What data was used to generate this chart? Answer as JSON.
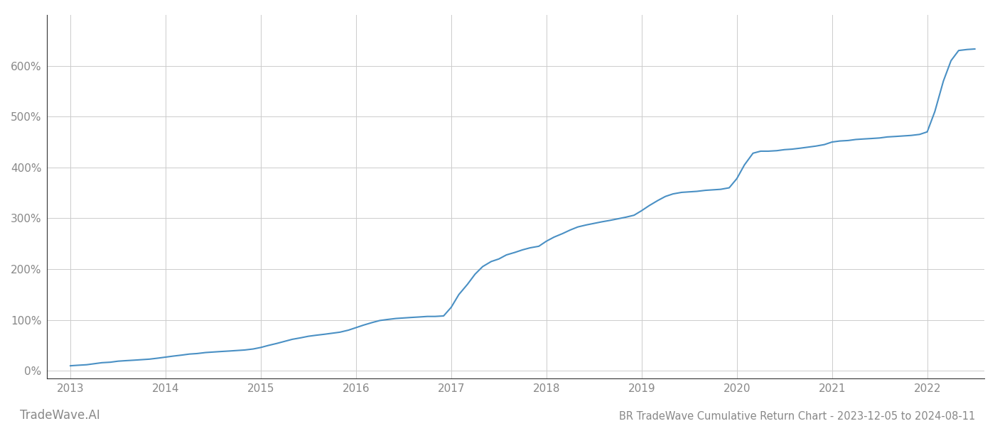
{
  "title": "BR TradeWave Cumulative Return Chart - 2023-12-05 to 2024-08-11",
  "watermark": "TradeWave.AI",
  "line_color": "#4a90c4",
  "background_color": "#ffffff",
  "grid_color": "#cccccc",
  "x_years": [
    2013,
    2014,
    2015,
    2016,
    2017,
    2018,
    2019,
    2020,
    2021,
    2022
  ],
  "x_values": [
    2013.0,
    2013.08,
    2013.17,
    2013.25,
    2013.33,
    2013.42,
    2013.5,
    2013.58,
    2013.67,
    2013.75,
    2013.83,
    2013.92,
    2014.0,
    2014.08,
    2014.17,
    2014.25,
    2014.33,
    2014.42,
    2014.5,
    2014.58,
    2014.67,
    2014.75,
    2014.83,
    2014.92,
    2015.0,
    2015.08,
    2015.17,
    2015.25,
    2015.33,
    2015.42,
    2015.5,
    2015.58,
    2015.67,
    2015.75,
    2015.83,
    2015.92,
    2016.0,
    2016.08,
    2016.17,
    2016.25,
    2016.33,
    2016.42,
    2016.5,
    2016.58,
    2016.67,
    2016.75,
    2016.83,
    2016.92,
    2017.0,
    2017.08,
    2017.17,
    2017.25,
    2017.33,
    2017.42,
    2017.5,
    2017.58,
    2017.67,
    2017.75,
    2017.83,
    2017.92,
    2018.0,
    2018.08,
    2018.17,
    2018.25,
    2018.33,
    2018.42,
    2018.5,
    2018.58,
    2018.67,
    2018.75,
    2018.83,
    2018.92,
    2019.0,
    2019.08,
    2019.17,
    2019.25,
    2019.33,
    2019.42,
    2019.5,
    2019.58,
    2019.67,
    2019.75,
    2019.83,
    2019.92,
    2020.0,
    2020.08,
    2020.17,
    2020.25,
    2020.33,
    2020.42,
    2020.5,
    2020.58,
    2020.67,
    2020.75,
    2020.83,
    2020.92,
    2021.0,
    2021.08,
    2021.17,
    2021.25,
    2021.33,
    2021.42,
    2021.5,
    2021.58,
    2021.67,
    2021.75,
    2021.83,
    2021.92,
    2022.0,
    2022.08,
    2022.17,
    2022.25,
    2022.33,
    2022.42,
    2022.5
  ],
  "y_values": [
    10,
    11,
    12,
    14,
    16,
    17,
    19,
    20,
    21,
    22,
    23,
    25,
    27,
    29,
    31,
    33,
    34,
    36,
    37,
    38,
    39,
    40,
    41,
    43,
    46,
    50,
    54,
    58,
    62,
    65,
    68,
    70,
    72,
    74,
    76,
    80,
    85,
    90,
    95,
    99,
    101,
    103,
    104,
    105,
    106,
    107,
    107,
    108,
    125,
    150,
    170,
    190,
    205,
    215,
    220,
    228,
    233,
    238,
    242,
    245,
    255,
    263,
    270,
    277,
    283,
    287,
    290,
    293,
    296,
    299,
    302,
    306,
    315,
    325,
    335,
    343,
    348,
    351,
    352,
    353,
    355,
    356,
    357,
    360,
    378,
    405,
    428,
    432,
    432,
    433,
    435,
    436,
    438,
    440,
    442,
    445,
    450,
    452,
    453,
    455,
    456,
    457,
    458,
    460,
    461,
    462,
    463,
    465,
    470,
    510,
    570,
    610,
    630,
    632,
    633
  ],
  "ytick_values": [
    0,
    100,
    200,
    300,
    400,
    500,
    600
  ],
  "ytick_labels": [
    "0%",
    "100%",
    "200%",
    "300%",
    "400%",
    "500%",
    "600%"
  ],
  "ylim": [
    -15,
    700
  ],
  "xlim": [
    2012.75,
    2022.6
  ],
  "line_width": 1.5,
  "title_fontsize": 10.5,
  "tick_fontsize": 11,
  "watermark_fontsize": 12,
  "tick_color": "#888888",
  "axis_color": "#333333",
  "left_spine_color": "#333333"
}
